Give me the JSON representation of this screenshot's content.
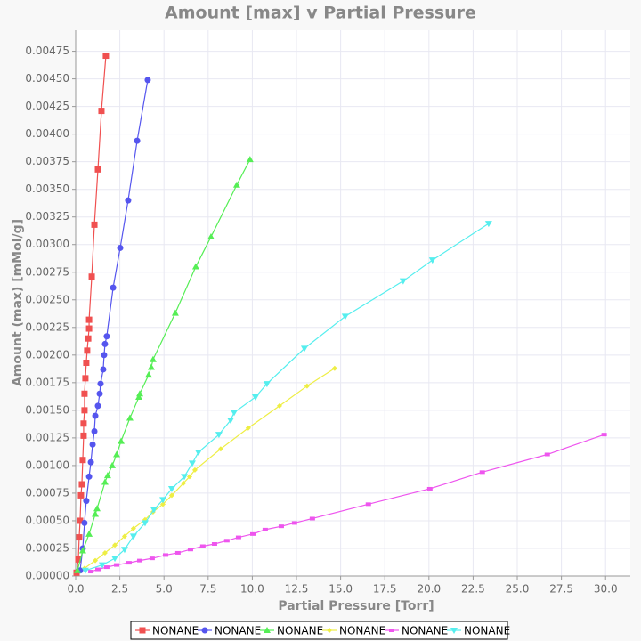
{
  "chart_data": {
    "type": "line",
    "title": "Amount [max] v Partial Pressure",
    "x_label": "Partial Pressure [Torr]",
    "y_label": "Amount (max) [mMol/g]",
    "xlim": [
      0,
      31.4
    ],
    "ylim": [
      0,
      0.00494
    ],
    "xticks": [
      {
        "value": 0,
        "label": "0.0"
      },
      2.5,
      {
        "value": 5,
        "label": "5.0"
      },
      7.5,
      {
        "value": 10,
        "label": "10.0"
      },
      12.5,
      {
        "value": 15,
        "label": "15.0"
      },
      17.5,
      {
        "value": 20,
        "label": "20.0"
      },
      22.5,
      {
        "value": 25,
        "label": "25.0"
      },
      27.5,
      {
        "value": 30,
        "label": "30.0"
      }
    ],
    "yticks": [
      {
        "value": 0,
        "label": "0.00000"
      },
      0.00025,
      {
        "value": 0.0005,
        "label": "0.00050"
      },
      0.00075,
      {
        "value": 0.001,
        "label": "0.00100"
      },
      0.00125,
      {
        "value": 0.0015,
        "label": "0.00150"
      },
      0.00175,
      {
        "value": 0.002,
        "label": "0.00200"
      },
      0.00225,
      {
        "value": 0.0025,
        "label": "0.00250"
      },
      0.00275,
      {
        "value": 0.003,
        "label": "0.00300"
      },
      0.00325,
      {
        "value": 0.0035,
        "label": "0.00350"
      },
      0.00375,
      {
        "value": 0.004,
        "label": "0.00400"
      },
      0.00425,
      {
        "value": 0.0045,
        "label": "0.00450"
      },
      0.00475
    ],
    "grid": true,
    "legend": "bottom",
    "series": [
      {
        "name": "NONANE",
        "color": "#f05050",
        "marker": "square",
        "x": [
          1.71,
          1.46,
          1.26,
          1.06,
          0.91,
          0.76,
          0.76,
          0.71,
          0.65,
          0.6,
          0.55,
          0.5,
          0.5,
          0.45,
          0.45,
          0.4,
          0.35,
          0.3,
          0.25,
          0.2,
          0.15,
          0.05
        ],
        "values": [
          0.00471,
          0.00421,
          0.00368,
          0.00318,
          0.00271,
          0.00232,
          0.00224,
          0.00215,
          0.00204,
          0.00193,
          0.00179,
          0.00165,
          0.0015,
          0.00138,
          0.00127,
          0.00105,
          0.00083,
          0.00073,
          0.0005,
          0.00035,
          0.00015,
          3e-05
        ]
      },
      {
        "name": "NONANE",
        "color": "#5555ee",
        "marker": "circle",
        "x": [
          4.08,
          3.48,
          2.97,
          2.52,
          2.12,
          1.76,
          1.66,
          1.61,
          1.56,
          1.41,
          1.36,
          1.26,
          1.11,
          1.06,
          0.96,
          0.86,
          0.76,
          0.6,
          0.5,
          0.4,
          0.25
        ],
        "values": [
          0.00449,
          0.00394,
          0.0034,
          0.00297,
          0.00261,
          0.00217,
          0.0021,
          0.002,
          0.00187,
          0.00174,
          0.00165,
          0.00154,
          0.00145,
          0.00131,
          0.00119,
          0.00103,
          0.0009,
          0.00068,
          0.00048,
          0.00025,
          5e-05
        ]
      },
      {
        "name": "NONANE",
        "color": "#55ee55",
        "marker": "triangle-up",
        "x": [
          9.87,
          9.12,
          7.66,
          6.8,
          5.64,
          4.38,
          4.28,
          4.13,
          3.63,
          3.58,
          3.07,
          2.57,
          2.32,
          2.07,
          1.81,
          1.66,
          1.21,
          1.11,
          0.76,
          0.4,
          0.1
        ],
        "values": [
          0.00377,
          0.00354,
          0.00307,
          0.0028,
          0.00238,
          0.00196,
          0.00189,
          0.00182,
          0.00165,
          0.00162,
          0.00143,
          0.00122,
          0.0011,
          0.001,
          0.00091,
          0.00085,
          0.00061,
          0.00056,
          0.00038,
          0.00023,
          5e-05
        ]
      },
      {
        "name": "NONANE",
        "color": "#eeee44",
        "marker": "diamond",
        "x": [
          14.66,
          13.1,
          11.54,
          9.77,
          8.21,
          6.75,
          6.45,
          6.1,
          5.44,
          4.94,
          4.38,
          3.93,
          3.27,
          2.77,
          2.22,
          1.66,
          1.11,
          0.5
        ],
        "values": [
          0.00188,
          0.00172,
          0.00154,
          0.00134,
          0.00115,
          0.00096,
          0.0009,
          0.00084,
          0.00073,
          0.00065,
          0.00058,
          0.00051,
          0.00043,
          0.00036,
          0.00028,
          0.00021,
          0.00014,
          7e-05
        ]
      },
      {
        "name": "NONANE",
        "color": "#ee55ee",
        "marker": "rect",
        "x": [
          29.92,
          26.7,
          23.02,
          20.05,
          16.57,
          13.4,
          12.39,
          11.64,
          10.73,
          10.03,
          9.22,
          8.56,
          7.86,
          7.2,
          6.5,
          5.79,
          5.09,
          4.33,
          3.63,
          3.02,
          2.32,
          1.76,
          1.26,
          0.86
        ],
        "values": [
          0.00128,
          0.0011,
          0.00094,
          0.00079,
          0.00065,
          0.00052,
          0.00048,
          0.00045,
          0.00042,
          0.00038,
          0.00035,
          0.00032,
          0.00029,
          0.00027,
          0.00024,
          0.00021,
          0.00019,
          0.00016,
          0.00014,
          0.00012,
          0.0001,
          8e-05,
          6e-05,
          4e-05
        ]
      },
      {
        "name": "NONANE",
        "color": "#55eeee",
        "marker": "triangle-down",
        "x": [
          23.38,
          20.2,
          18.54,
          15.26,
          12.95,
          10.83,
          10.18,
          8.97,
          8.77,
          8.11,
          6.95,
          6.6,
          6.15,
          5.44,
          4.94,
          4.43,
          3.93,
          3.27,
          2.77,
          2.22,
          1.51,
          0.55
        ],
        "values": [
          0.00319,
          0.00286,
          0.00267,
          0.00235,
          0.00206,
          0.00174,
          0.00162,
          0.00148,
          0.00141,
          0.00128,
          0.00112,
          0.00102,
          0.0009,
          0.00079,
          0.00069,
          0.0006,
          0.00048,
          0.00036,
          0.00024,
          0.00016,
          0.0001,
          5e-05
        ]
      }
    ]
  }
}
